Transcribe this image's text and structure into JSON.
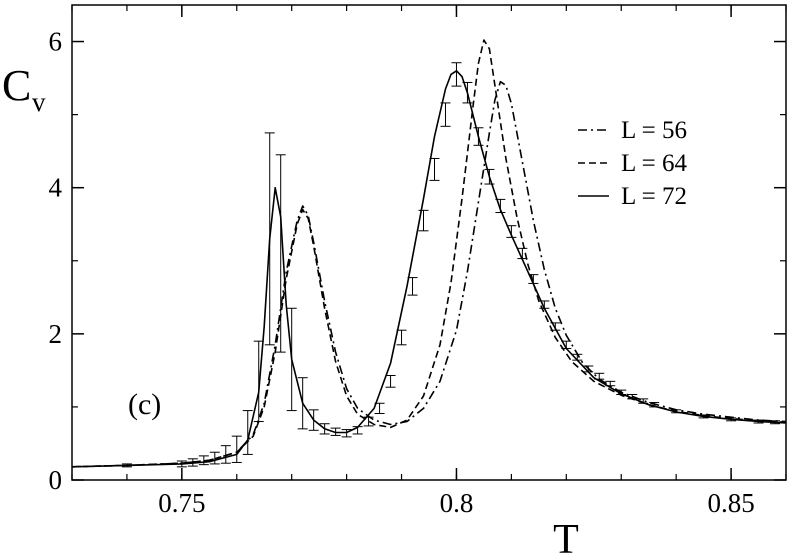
{
  "chart_data": {
    "type": "line",
    "panel_label": "(c)",
    "xlabel": "T",
    "ylabel": {
      "main": "C",
      "sub": "v"
    },
    "xlim": [
      0.73,
      0.86
    ],
    "ylim": [
      0,
      6.5
    ],
    "xticks": [
      0.75,
      0.8,
      0.85
    ],
    "xtick_labels": [
      "0.75",
      "0.8",
      "0.85"
    ],
    "yticks": [
      0,
      2,
      4,
      6
    ],
    "ytick_labels": [
      "0",
      "2",
      "4",
      "6"
    ],
    "grid": false,
    "legend_position": "top-right",
    "series": [
      {
        "name": "L = 56",
        "dash": "dash-dot",
        "x": [
          0.73,
          0.74,
          0.75,
          0.755,
          0.76,
          0.763,
          0.765,
          0.767,
          0.769,
          0.771,
          0.772,
          0.773,
          0.774,
          0.776,
          0.778,
          0.78,
          0.782,
          0.785,
          0.788,
          0.791,
          0.794,
          0.797,
          0.8,
          0.802,
          0.804,
          0.806,
          0.807,
          0.808,
          0.809,
          0.81,
          0.812,
          0.814,
          0.816,
          0.818,
          0.82,
          0.823,
          0.826,
          0.83,
          0.835,
          0.84,
          0.845,
          0.85,
          0.855,
          0.86
        ],
        "y": [
          0.18,
          0.2,
          0.23,
          0.27,
          0.38,
          0.62,
          1.05,
          1.85,
          2.85,
          3.55,
          3.75,
          3.62,
          3.25,
          2.45,
          1.75,
          1.25,
          0.98,
          0.82,
          0.76,
          0.8,
          0.98,
          1.35,
          2.05,
          2.85,
          3.8,
          4.75,
          5.2,
          5.45,
          5.4,
          5.15,
          4.35,
          3.55,
          2.88,
          2.35,
          1.98,
          1.6,
          1.38,
          1.2,
          1.06,
          0.96,
          0.9,
          0.86,
          0.82,
          0.8
        ]
      },
      {
        "name": "L = 64",
        "dash": "dashed",
        "x": [
          0.73,
          0.74,
          0.75,
          0.755,
          0.76,
          0.763,
          0.765,
          0.767,
          0.769,
          0.771,
          0.772,
          0.773,
          0.774,
          0.776,
          0.778,
          0.78,
          0.782,
          0.785,
          0.788,
          0.791,
          0.794,
          0.797,
          0.799,
          0.801,
          0.803,
          0.804,
          0.805,
          0.806,
          0.807,
          0.809,
          0.811,
          0.813,
          0.815,
          0.818,
          0.821,
          0.825,
          0.83,
          0.835,
          0.84,
          0.845,
          0.85,
          0.855,
          0.86
        ],
        "y": [
          0.18,
          0.2,
          0.23,
          0.27,
          0.38,
          0.6,
          1.0,
          1.75,
          2.75,
          3.5,
          3.7,
          3.58,
          3.2,
          2.35,
          1.62,
          1.15,
          0.9,
          0.76,
          0.72,
          0.82,
          1.15,
          1.85,
          2.7,
          3.85,
          5.1,
          5.7,
          6.02,
          5.9,
          5.4,
          4.4,
          3.6,
          2.95,
          2.45,
          1.95,
          1.62,
          1.35,
          1.16,
          1.03,
          0.94,
          0.88,
          0.84,
          0.81,
          0.79
        ]
      },
      {
        "name": "L = 72",
        "dash": "solid",
        "x": [
          0.73,
          0.74,
          0.75,
          0.755,
          0.76,
          0.762,
          0.764,
          0.765,
          0.766,
          0.767,
          0.768,
          0.769,
          0.77,
          0.772,
          0.774,
          0.776,
          0.778,
          0.78,
          0.782,
          0.785,
          0.788,
          0.791,
          0.794,
          0.796,
          0.798,
          0.799,
          0.8,
          0.801,
          0.802,
          0.804,
          0.806,
          0.808,
          0.81,
          0.813,
          0.816,
          0.82,
          0.825,
          0.83,
          0.835,
          0.84,
          0.845,
          0.85,
          0.855,
          0.86
        ],
        "y": [
          0.18,
          0.2,
          0.22,
          0.25,
          0.35,
          0.55,
          1.2,
          2.1,
          3.3,
          4.0,
          3.6,
          2.4,
          1.65,
          1.05,
          0.82,
          0.7,
          0.65,
          0.65,
          0.72,
          0.98,
          1.6,
          2.65,
          3.85,
          4.7,
          5.35,
          5.55,
          5.6,
          5.52,
          5.3,
          4.7,
          4.15,
          3.7,
          3.35,
          2.85,
          2.35,
          1.8,
          1.4,
          1.18,
          1.03,
          0.93,
          0.87,
          0.83,
          0.8,
          0.78
        ]
      }
    ],
    "error_bars": {
      "series": "L = 72",
      "x": [
        0.74,
        0.75,
        0.752,
        0.754,
        0.756,
        0.758,
        0.76,
        0.762,
        0.764,
        0.766,
        0.768,
        0.77,
        0.772,
        0.774,
        0.776,
        0.778,
        0.78,
        0.782,
        0.784,
        0.786,
        0.788,
        0.79,
        0.792,
        0.794,
        0.796,
        0.798,
        0.8,
        0.802,
        0.804,
        0.806,
        0.808,
        0.81,
        0.812,
        0.814,
        0.816,
        0.818,
        0.82,
        0.822,
        0.824,
        0.826,
        0.828,
        0.83,
        0.832,
        0.834,
        0.836,
        0.84,
        0.845,
        0.85,
        0.855,
        0.858
      ],
      "y": [
        0.2,
        0.22,
        0.24,
        0.27,
        0.3,
        0.35,
        0.42,
        0.65,
        1.35,
        3.3,
        3.1,
        1.65,
        1.05,
        0.82,
        0.7,
        0.66,
        0.64,
        0.68,
        0.8,
        0.98,
        1.35,
        1.95,
        2.65,
        3.55,
        4.25,
        5.0,
        5.55,
        5.3,
        4.7,
        4.15,
        3.75,
        3.4,
        3.1,
        2.75,
        2.4,
        2.1,
        1.85,
        1.68,
        1.52,
        1.42,
        1.32,
        1.2,
        1.14,
        1.08,
        1.03,
        0.94,
        0.87,
        0.83,
        0.8,
        0.79
      ],
      "err": [
        0.02,
        0.04,
        0.05,
        0.06,
        0.08,
        0.12,
        0.18,
        0.3,
        0.55,
        1.45,
        1.35,
        0.7,
        0.35,
        0.14,
        0.07,
        0.05,
        0.05,
        0.05,
        0.06,
        0.07,
        0.08,
        0.1,
        0.12,
        0.14,
        0.15,
        0.16,
        0.16,
        0.14,
        0.12,
        0.1,
        0.09,
        0.08,
        0.07,
        0.06,
        0.05,
        0.05,
        0.05,
        0.04,
        0.04,
        0.04,
        0.03,
        0.03,
        0.03,
        0.03,
        0.03,
        0.02,
        0.02,
        0.02,
        0.02,
        0.02
      ]
    }
  }
}
